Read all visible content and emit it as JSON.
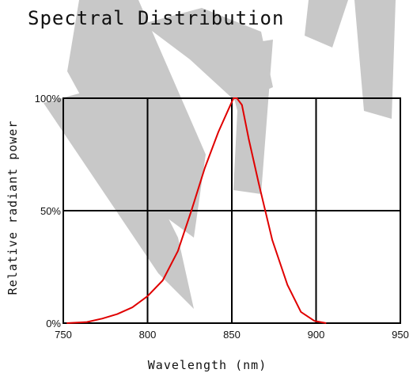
{
  "chart_data": {
    "type": "line",
    "title": "Spectral Distribution",
    "xlabel": "Wavelength (nm)",
    "ylabel": "Relative radiant power",
    "xlim": [
      750,
      950
    ],
    "ylim": [
      0,
      100
    ],
    "x_ticks": [
      "750",
      "800",
      "850",
      "900",
      "950"
    ],
    "y_ticks": [
      "0%",
      "50%",
      "100%"
    ],
    "grid": true,
    "x_grid_values": [
      800,
      850,
      900
    ],
    "y_grid_values": [
      50
    ],
    "colors": {
      "curve": "#e00000",
      "grid": "#000000",
      "watermark": "#c8c8c8"
    },
    "series": [
      {
        "x": [
          752,
          764,
          773,
          782,
          791,
          800,
          809,
          818,
          826,
          834,
          842,
          848,
          851,
          853,
          856,
          860,
          866,
          874,
          883,
          891,
          899,
          906
        ],
        "y": [
          0,
          0.5,
          2,
          4,
          7,
          12,
          19,
          32,
          50,
          69,
          85,
          95,
          100,
          100,
          97,
          82,
          62,
          37,
          17,
          5,
          1,
          0
        ]
      }
    ]
  }
}
